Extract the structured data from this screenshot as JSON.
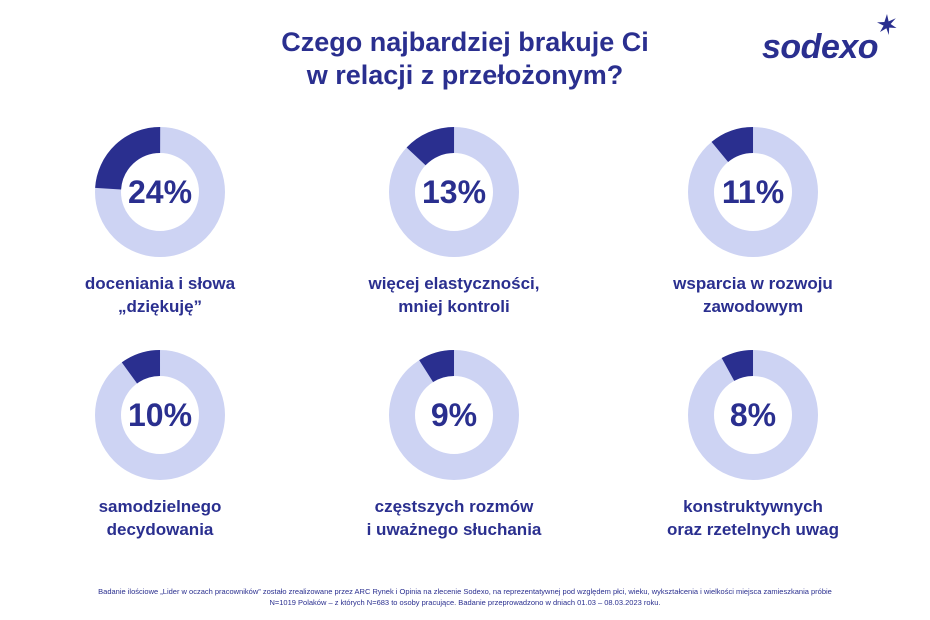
{
  "title_line1": "Czego najbardziej brakuje Ci",
  "title_line2": "w relacji z przełożonym?",
  "logo_text": "sodexo",
  "colors": {
    "primary": "#2a2f8f",
    "track": "#cdd3f3",
    "text": "#2a2f8f"
  },
  "chart_data": [
    {
      "type": "pie",
      "value": 24,
      "label": "24%",
      "caption_lines": [
        "doceniania i słowa",
        "„dziękuję”"
      ]
    },
    {
      "type": "pie",
      "value": 13,
      "label": "13%",
      "caption_lines": [
        "więcej elastyczności,",
        "mniej kontroli"
      ]
    },
    {
      "type": "pie",
      "value": 11,
      "label": "11%",
      "caption_lines": [
        "wsparcia w rozwoju",
        "zawodowym"
      ]
    },
    {
      "type": "pie",
      "value": 10,
      "label": "10%",
      "caption_lines": [
        "samodzielnego",
        "decydowania"
      ]
    },
    {
      "type": "pie",
      "value": 9,
      "label": "9%",
      "caption_lines": [
        "częstszych rozmów",
        "i uważnego słuchania"
      ]
    },
    {
      "type": "pie",
      "value": 8,
      "label": "8%",
      "caption_lines": [
        "konstruktywnych",
        "oraz rzetelnych uwag"
      ]
    }
  ],
  "footnote_line1": "Badanie ilościowe „Lider w oczach pracowników” zostało zrealizowane przez ARC Rynek i Opinia na zlecenie Sodexo, na reprezentatywnej pod względem płci, wieku, wykształcenia i wielkości miejsca zamieszkania próbie",
  "footnote_line2": "N=1019 Polaków – z których N=683 to osoby pracujące. Badanie przeprowadzono w dniach 01.03 – 08.03.2023 roku."
}
